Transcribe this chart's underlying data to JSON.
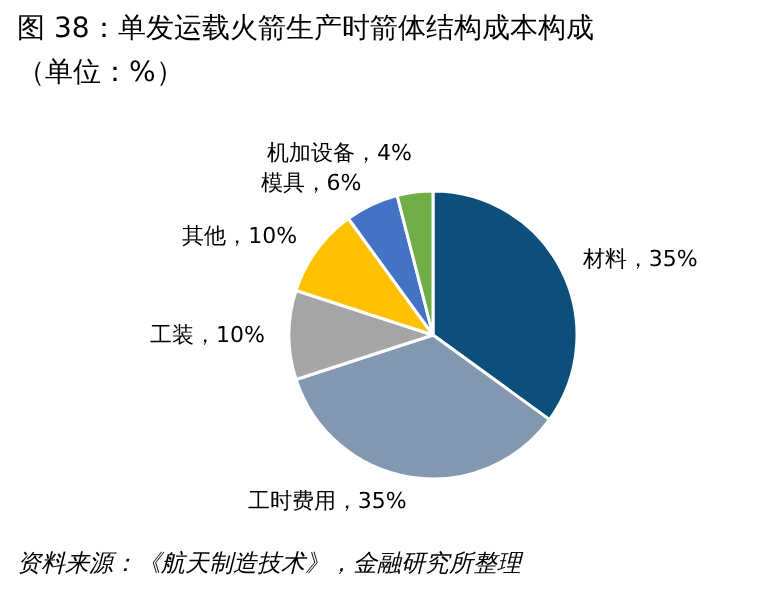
{
  "chart_data": {
    "type": "pie",
    "title": "图 38：单发运载火箭生产时箭体结构成本构成",
    "subtitle": "（单位：%）",
    "categories": [
      "材料",
      "工时费用",
      "工装",
      "其他",
      "模具",
      "机加设备"
    ],
    "values": [
      35,
      35,
      10,
      10,
      6,
      4
    ],
    "colors": [
      "#0b4f7a",
      "#8497b0",
      "#a5a5a5",
      "#ffc000",
      "#4472c4",
      "#70ad47"
    ],
    "value_labels": [
      "35%",
      "35%",
      "10%",
      "10%",
      "6%",
      "4%"
    ],
    "annotations": [
      "资料来源：《航天制造技术》，金融研究所整理"
    ]
  }
}
